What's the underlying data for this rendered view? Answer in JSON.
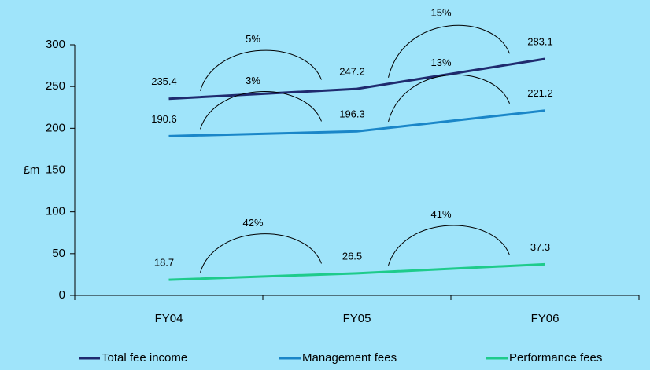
{
  "chart_data": {
    "type": "line",
    "ylabel": "£m",
    "categories": [
      "FY04",
      "FY05",
      "FY06"
    ],
    "series": [
      {
        "name": "Total fee income",
        "color": "#1f2a6e",
        "values": [
          235.4,
          247.2,
          283.1
        ],
        "growth": [
          "5%",
          "15%"
        ]
      },
      {
        "name": "Management fees",
        "color": "#1a86c8",
        "values": [
          190.6,
          196.3,
          221.2
        ],
        "growth": [
          "3%",
          "13%"
        ]
      },
      {
        "name": "Performance fees",
        "color": "#1ecb8b",
        "values": [
          18.7,
          26.5,
          37.3
        ],
        "growth": [
          "42%",
          "41%"
        ]
      }
    ],
    "ylim": [
      0,
      300
    ],
    "yticks": [
      0,
      50,
      100,
      150,
      200,
      250,
      300
    ],
    "grid": false,
    "legend": "bottom"
  }
}
